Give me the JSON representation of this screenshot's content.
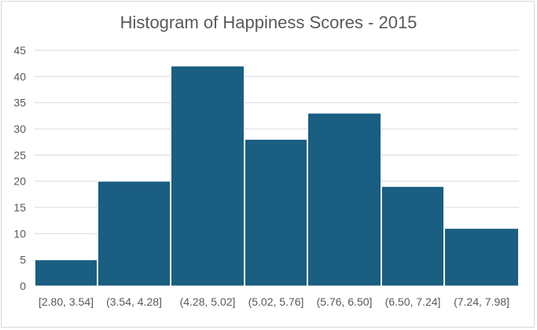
{
  "chart_data": {
    "type": "bar",
    "title": "Histogram of Happiness Scores - 2015",
    "xlabel": "",
    "ylabel": "",
    "categories": [
      "[2.80, 3.54]",
      "(3.54, 4.28]",
      "(4.28, 5.02]",
      "(5.02, 5.76]",
      "(5.76, 6.50]",
      "(6.50, 7.24]",
      "(7.24, 7.98]"
    ],
    "values": [
      5,
      20,
      42,
      28,
      33,
      19,
      11
    ],
    "ylim": [
      0,
      45
    ],
    "yticks": [
      0,
      5,
      10,
      15,
      20,
      25,
      30,
      35,
      40,
      45
    ],
    "grid": true,
    "bar_color": "#1a5e82",
    "gridline_color": "#d9d9d9"
  }
}
